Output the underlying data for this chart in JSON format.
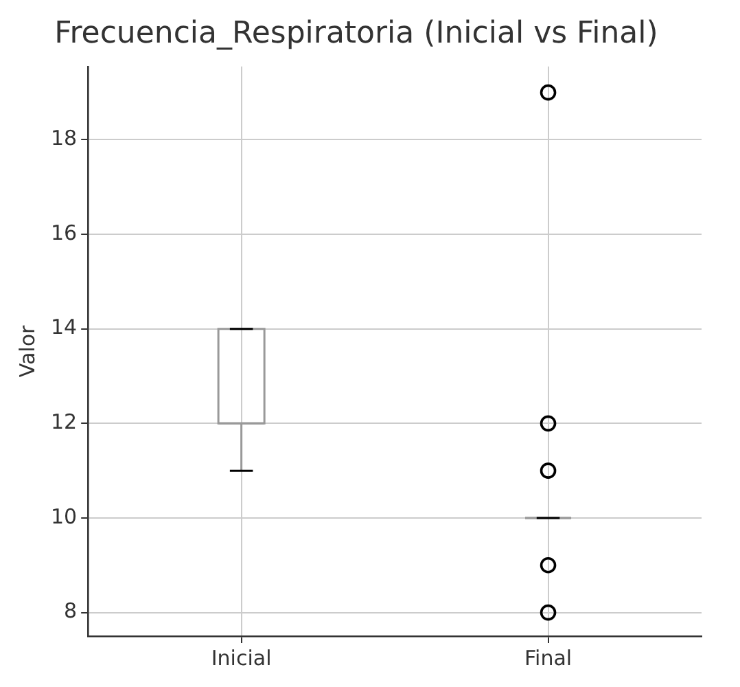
{
  "chart_data": {
    "type": "box",
    "title": "Frecuencia_Respiratoria (Inicial vs Final)",
    "ylabel": "Valor",
    "categories": [
      "Inicial",
      "Final"
    ],
    "boxes": [
      {
        "low": 11,
        "q1": 12,
        "median": 12,
        "q3": 14,
        "high": 14
      },
      {
        "low": 10,
        "q1": 10,
        "median": 10,
        "q3": 10,
        "high": 10,
        "outliers": [
          8,
          9,
          11,
          12,
          19
        ]
      }
    ],
    "color": "#999999",
    "ylim": [
      7.5,
      19.55
    ],
    "yticks": [
      8,
      10,
      12,
      14,
      16,
      18
    ],
    "grid": true
  }
}
